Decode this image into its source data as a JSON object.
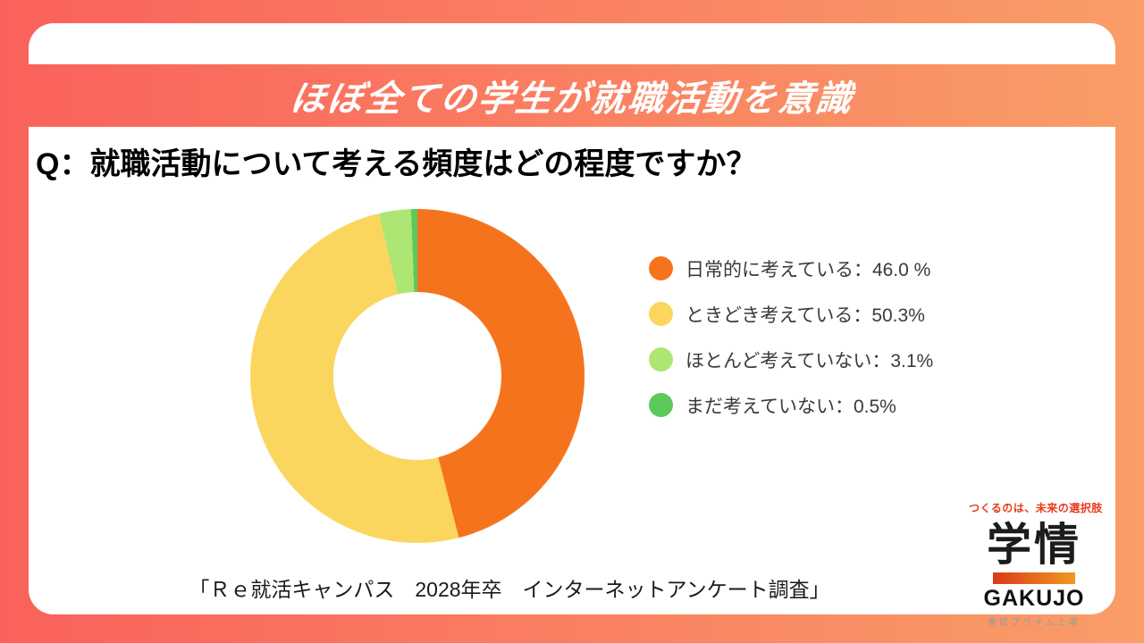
{
  "banner": {
    "title": "ほぼ全ての学生が就職活動を意識"
  },
  "question": "Q：就職活動について考える頻度はどの程度ですか？",
  "chart_data": {
    "type": "pie",
    "subtype": "donut",
    "title": "就職活動について考える頻度",
    "start_angle_deg": 0,
    "direction": "clockwise",
    "categories": [
      "日常的に考えている",
      "ときどき考えている",
      "ほとんど考えていない",
      "まだ考えていない"
    ],
    "values": [
      46.0,
      50.3,
      3.1,
      0.5
    ],
    "unit": "%",
    "colors": [
      "#f6731e",
      "#fbd65f",
      "#aee673",
      "#5cc95b"
    ],
    "legend_position": "right",
    "items": [
      {
        "label": "日常的に考えている：46.0 %",
        "name": "日常的に考えている",
        "value": 46.0,
        "color": "#f6731e"
      },
      {
        "label": "ときどき考えている：50.3%",
        "name": "ときどき考えている",
        "value": 50.3,
        "color": "#fbd65f"
      },
      {
        "label": "ほとんど考えていない：3.1%",
        "name": "ほとんど考えていない",
        "value": 3.1,
        "color": "#aee673"
      },
      {
        "label": "まだ考えていない：0.5%",
        "name": "まだ考えていない",
        "value": 0.5,
        "color": "#5cc95b"
      }
    ]
  },
  "source": "「Ｒｅ就活キャンパス　2028年卒　インターネットアンケート調査」",
  "logo": {
    "tagline": "つくるのは、未来の選択肢",
    "name_kanji": "学情",
    "name_latin": "GAKUJO",
    "listing": "東証プライム上場"
  },
  "colors": {
    "background_gradient_left": "#fa615c",
    "background_gradient_right": "#f99e67",
    "banner_text": "#ffffff",
    "logo_bar_gradient_left": "#d93a1c",
    "logo_bar_gradient_right": "#f09a1e",
    "logo_tagline_red": "#e73a1a"
  }
}
